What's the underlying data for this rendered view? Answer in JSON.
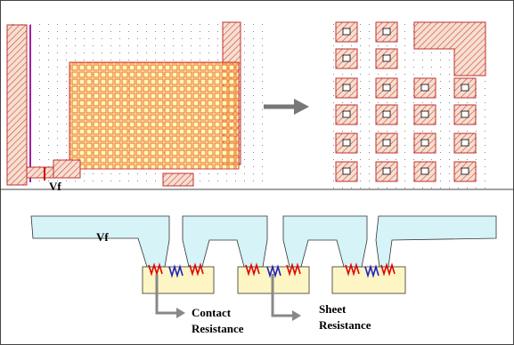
{
  "labels": {
    "vf_layout": "Vf",
    "vf_cross_section": "Vf",
    "contact_resistance": [
      "Contact",
      "Resistance"
    ],
    "sheet_resistance": [
      "Sheet",
      "Resistance"
    ]
  }
}
